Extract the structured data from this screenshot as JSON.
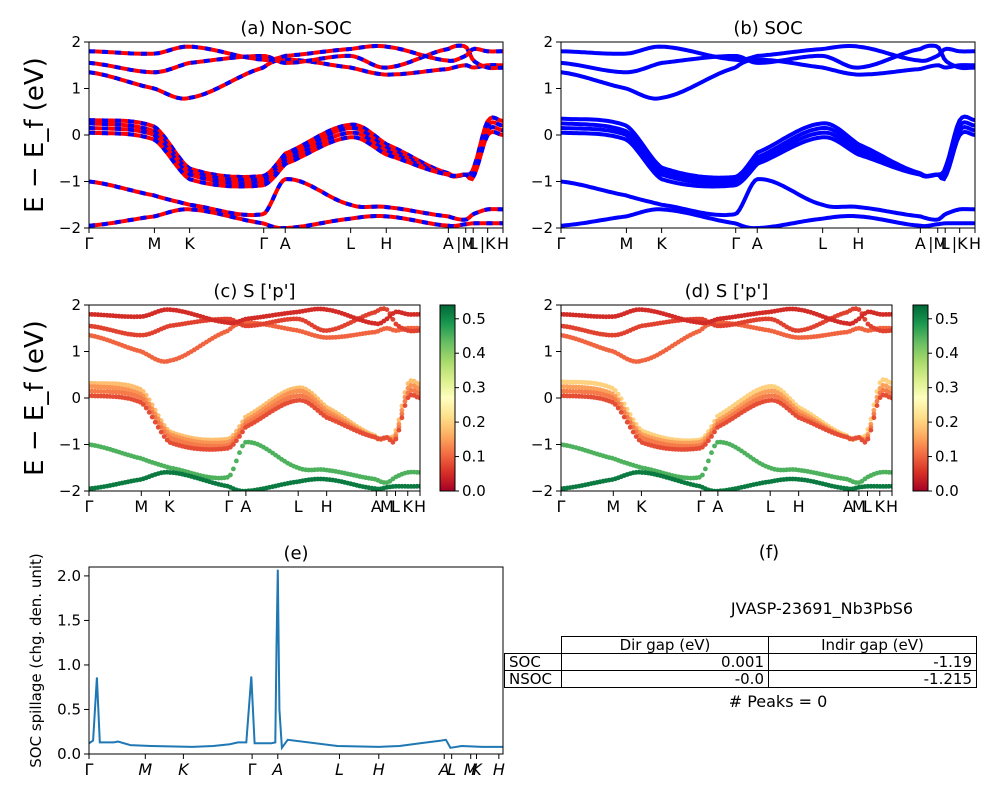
{
  "figure": {
    "ylabel_main": "E − E_f (eV)",
    "spillage_id": "JVASP-23691_Nb3PbS6",
    "peaks_text": "# Peaks = 0"
  },
  "colors": {
    "nonsoc_a": "#ff0000",
    "nonsoc_b": "#0000ff",
    "soc": "#0000ff",
    "spillage": "#1f77b4",
    "colormap": [
      "#a50026",
      "#d73027",
      "#f46d43",
      "#fdae61",
      "#fee08b",
      "#ffffbf",
      "#d9ef8b",
      "#a6d96a",
      "#66bd63",
      "#1a9850",
      "#006837"
    ]
  },
  "table": {
    "headers": [
      "",
      "Dir gap (eV)",
      "Indir gap (eV)"
    ],
    "rows": [
      {
        "label": "SOC",
        "dir": "0.001",
        "indir": "-1.19"
      },
      {
        "label": "NSOC",
        "dir": "-0.0",
        "indir": "-1.215"
      }
    ]
  },
  "chart_data": [
    {
      "panel": "a",
      "type": "line",
      "title": "(a) Non-SOC",
      "ylabel": "E − E_f (eV)",
      "ylim": [
        -2,
        2
      ],
      "yticks": [
        -2,
        -1,
        0,
        1,
        2
      ],
      "kpath": [
        {
          "label": "Γ",
          "k": 0
        },
        {
          "label": "M",
          "k": 0.158
        },
        {
          "label": "K",
          "k": 0.243
        },
        {
          "label": "Γ",
          "k": 0.422
        },
        {
          "label": "A",
          "k": 0.474
        },
        {
          "label": "L",
          "k": 0.632
        },
        {
          "label": "H",
          "k": 0.718
        },
        {
          "label": "A",
          "k": 0.868
        },
        {
          "label": "|M",
          "k": 0.91
        },
        {
          "label": "L",
          "k": 0.928
        },
        {
          "label": "|K",
          "k": 0.963
        },
        {
          "label": "H",
          "k": 1.0
        }
      ],
      "series": [
        {
          "values": [
            0.32,
            0.18,
            -0.72,
            -0.88,
            -0.4,
            0.22,
            -0.2,
            -0.82,
            -0.85,
            -0.72,
            0.3,
            0.3
          ]
        },
        {
          "values": [
            0.25,
            0.08,
            -0.78,
            -0.95,
            -0.48,
            0.15,
            -0.28,
            -0.85,
            -0.85,
            -0.8,
            0.2,
            0.2
          ]
        },
        {
          "values": [
            0.15,
            0.0,
            -0.85,
            -1.02,
            -0.55,
            0.05,
            -0.35,
            -0.85,
            -0.85,
            -0.85,
            0.1,
            0.1
          ]
        },
        {
          "values": [
            0.05,
            -0.1,
            -0.95,
            -1.08,
            -0.62,
            -0.05,
            -0.42,
            -0.85,
            -0.85,
            -0.9,
            0.0,
            0.0
          ]
        },
        {
          "values": [
            -1.0,
            -1.3,
            -1.5,
            -1.7,
            -0.95,
            -1.5,
            -1.55,
            -1.75,
            -1.82,
            -1.7,
            -1.6,
            -1.6
          ]
        },
        {
          "values": [
            -1.95,
            -1.75,
            -1.6,
            -1.9,
            -2.0,
            -1.8,
            -1.75,
            -1.95,
            -1.92,
            -1.9,
            -1.9,
            -1.9
          ]
        },
        {
          "values": [
            1.35,
            1.0,
            0.8,
            1.45,
            1.62,
            1.45,
            1.3,
            1.42,
            1.5,
            1.45,
            1.5,
            1.5
          ]
        },
        {
          "values": [
            1.55,
            1.35,
            1.55,
            1.7,
            1.55,
            1.7,
            1.45,
            1.85,
            1.9,
            1.6,
            1.45,
            1.45
          ]
        },
        {
          "values": [
            1.8,
            1.75,
            1.9,
            1.62,
            1.7,
            1.85,
            1.9,
            1.6,
            1.7,
            1.85,
            1.8,
            1.8
          ]
        }
      ]
    },
    {
      "panel": "b",
      "type": "line",
      "title": "(b) SOC",
      "ylim": [
        -2,
        2
      ],
      "yticks": [
        -2,
        -1,
        0,
        1,
        2
      ],
      "kpath": [
        {
          "label": "Γ",
          "k": 0
        },
        {
          "label": "M",
          "k": 0.158
        },
        {
          "label": "K",
          "k": 0.243
        },
        {
          "label": "Γ",
          "k": 0.422
        },
        {
          "label": "A",
          "k": 0.474
        },
        {
          "label": "L",
          "k": 0.632
        },
        {
          "label": "H",
          "k": 0.718
        },
        {
          "label": "A",
          "k": 0.868
        },
        {
          "label": "|M",
          "k": 0.91
        },
        {
          "label": "L",
          "k": 0.928
        },
        {
          "label": "|K",
          "k": 0.963
        },
        {
          "label": "H",
          "k": 1.0
        }
      ],
      "series": [
        {
          "values": [
            0.35,
            0.2,
            -0.7,
            -0.9,
            -0.38,
            0.25,
            -0.2,
            -0.82,
            -0.85,
            -0.7,
            0.32,
            0.32
          ]
        },
        {
          "values": [
            0.25,
            0.08,
            -0.78,
            -0.95,
            -0.48,
            0.15,
            -0.28,
            -0.85,
            -0.85,
            -0.8,
            0.2,
            0.2
          ]
        },
        {
          "values": [
            0.15,
            0.0,
            -0.85,
            -1.02,
            -0.55,
            0.05,
            -0.35,
            -0.85,
            -0.85,
            -0.85,
            0.1,
            0.1
          ]
        },
        {
          "values": [
            0.05,
            -0.1,
            -0.95,
            -1.08,
            -0.62,
            -0.05,
            -0.42,
            -0.85,
            -0.85,
            -0.9,
            0.0,
            0.0
          ]
        },
        {
          "values": [
            -1.0,
            -1.3,
            -1.5,
            -1.7,
            -0.95,
            -1.5,
            -1.55,
            -1.75,
            -1.82,
            -1.7,
            -1.6,
            -1.6
          ]
        },
        {
          "values": [
            -1.95,
            -1.75,
            -1.6,
            -1.9,
            -2.0,
            -1.8,
            -1.75,
            -1.95,
            -1.92,
            -1.9,
            -1.9,
            -1.9
          ]
        },
        {
          "values": [
            1.35,
            1.0,
            0.8,
            1.45,
            1.62,
            1.45,
            1.3,
            1.42,
            1.5,
            1.45,
            1.5,
            1.5
          ]
        },
        {
          "values": [
            1.55,
            1.35,
            1.55,
            1.7,
            1.55,
            1.7,
            1.45,
            1.85,
            1.9,
            1.6,
            1.45,
            1.45
          ]
        },
        {
          "values": [
            1.8,
            1.75,
            1.9,
            1.62,
            1.7,
            1.85,
            1.9,
            1.6,
            1.7,
            1.85,
            1.8,
            1.8
          ]
        }
      ]
    },
    {
      "panel": "c",
      "type": "scatter",
      "title": "(c)  S ['p']",
      "ylabel": "E − E_f (eV)",
      "ylim": [
        -2,
        2
      ],
      "yticks": [
        -2,
        -1,
        0,
        1,
        2
      ],
      "colorbar": {
        "range": [
          0,
          0.54
        ],
        "ticks": [
          0.0,
          0.1,
          0.2,
          0.3,
          0.4,
          0.5
        ]
      },
      "kpath": [
        {
          "label": "Γ",
          "k": 0
        },
        {
          "label": "M",
          "k": 0.158
        },
        {
          "label": "K",
          "k": 0.243
        },
        {
          "label": "Γ",
          "k": 0.422
        },
        {
          "label": "A",
          "k": 0.474
        },
        {
          "label": "L",
          "k": 0.632
        },
        {
          "label": "H",
          "k": 0.718
        },
        {
          "label": "A",
          "k": 0.868
        },
        {
          "label": "M",
          "k": 0.9
        },
        {
          "label": "L",
          "k": 0.926
        },
        {
          "label": "K",
          "k": 0.963
        },
        {
          "label": "H",
          "k": 1.0
        }
      ],
      "series": [
        {
          "values": [
            0.32,
            0.18,
            -0.72,
            -0.88,
            -0.4,
            0.22,
            -0.2,
            -0.82,
            -0.85,
            -0.72,
            0.3,
            0.3
          ],
          "weight": 0.18
        },
        {
          "values": [
            0.25,
            0.08,
            -0.78,
            -0.95,
            -0.48,
            0.15,
            -0.28,
            -0.85,
            -0.85,
            -0.8,
            0.2,
            0.2
          ],
          "weight": 0.14
        },
        {
          "values": [
            0.15,
            0.0,
            -0.85,
            -1.02,
            -0.55,
            0.05,
            -0.35,
            -0.85,
            -0.85,
            -0.85,
            0.1,
            0.1
          ],
          "weight": 0.12
        },
        {
          "values": [
            0.05,
            -0.1,
            -0.95,
            -1.08,
            -0.62,
            -0.05,
            -0.42,
            -0.85,
            -0.85,
            -0.9,
            0.0,
            0.0
          ],
          "weight": 0.08
        },
        {
          "values": [
            -1.0,
            -1.3,
            -1.5,
            -1.7,
            -0.95,
            -1.5,
            -1.55,
            -1.75,
            -1.82,
            -1.7,
            -1.6,
            -1.6
          ],
          "weight": 0.45
        },
        {
          "values": [
            -1.95,
            -1.75,
            -1.6,
            -1.9,
            -2.0,
            -1.8,
            -1.75,
            -1.95,
            -1.92,
            -1.9,
            -1.9,
            -1.9
          ],
          "weight": 0.52
        },
        {
          "values": [
            1.35,
            1.0,
            0.8,
            1.45,
            1.62,
            1.45,
            1.3,
            1.42,
            1.5,
            1.45,
            1.5,
            1.5
          ],
          "weight": 0.1
        },
        {
          "values": [
            1.55,
            1.35,
            1.55,
            1.7,
            1.55,
            1.7,
            1.45,
            1.85,
            1.9,
            1.6,
            1.45,
            1.45
          ],
          "weight": 0.07
        },
        {
          "values": [
            1.8,
            1.75,
            1.9,
            1.62,
            1.7,
            1.85,
            1.9,
            1.6,
            1.7,
            1.85,
            1.8,
            1.8
          ],
          "weight": 0.05
        }
      ]
    },
    {
      "panel": "d",
      "type": "scatter",
      "title": "(d) S ['p']",
      "ylim": [
        -2,
        2
      ],
      "yticks": [
        -2,
        -1,
        0,
        1,
        2
      ],
      "colorbar": {
        "range": [
          0,
          0.54
        ],
        "ticks": [
          0.0,
          0.1,
          0.2,
          0.3,
          0.4,
          0.5
        ]
      },
      "kpath": [
        {
          "label": "Γ",
          "k": 0
        },
        {
          "label": "M",
          "k": 0.158
        },
        {
          "label": "K",
          "k": 0.243
        },
        {
          "label": "Γ",
          "k": 0.422
        },
        {
          "label": "A",
          "k": 0.474
        },
        {
          "label": "L",
          "k": 0.632
        },
        {
          "label": "H",
          "k": 0.718
        },
        {
          "label": "A",
          "k": 0.868
        },
        {
          "label": "M",
          "k": 0.9
        },
        {
          "label": "L",
          "k": 0.926
        },
        {
          "label": "K",
          "k": 0.963
        },
        {
          "label": "H",
          "k": 1.0
        }
      ],
      "series": [
        {
          "values": [
            0.35,
            0.2,
            -0.7,
            -0.9,
            -0.38,
            0.25,
            -0.2,
            -0.82,
            -0.85,
            -0.7,
            0.32,
            0.32
          ],
          "weight": 0.2
        },
        {
          "values": [
            0.25,
            0.08,
            -0.78,
            -0.95,
            -0.48,
            0.15,
            -0.28,
            -0.85,
            -0.85,
            -0.8,
            0.2,
            0.2
          ],
          "weight": 0.15
        },
        {
          "values": [
            0.15,
            0.0,
            -0.85,
            -1.02,
            -0.55,
            0.05,
            -0.35,
            -0.85,
            -0.85,
            -0.85,
            0.1,
            0.1
          ],
          "weight": 0.12
        },
        {
          "values": [
            0.05,
            -0.1,
            -0.95,
            -1.08,
            -0.62,
            -0.05,
            -0.42,
            -0.85,
            -0.85,
            -0.9,
            0.0,
            0.0
          ],
          "weight": 0.08
        },
        {
          "values": [
            -1.0,
            -1.3,
            -1.5,
            -1.7,
            -0.95,
            -1.5,
            -1.55,
            -1.75,
            -1.82,
            -1.7,
            -1.6,
            -1.6
          ],
          "weight": 0.45
        },
        {
          "values": [
            -1.95,
            -1.75,
            -1.6,
            -1.9,
            -2.0,
            -1.8,
            -1.75,
            -1.95,
            -1.92,
            -1.9,
            -1.9,
            -1.9
          ],
          "weight": 0.52
        },
        {
          "values": [
            1.35,
            1.0,
            0.8,
            1.45,
            1.62,
            1.45,
            1.3,
            1.42,
            1.5,
            1.45,
            1.5,
            1.5
          ],
          "weight": 0.1
        },
        {
          "values": [
            1.55,
            1.35,
            1.55,
            1.7,
            1.55,
            1.7,
            1.45,
            1.85,
            1.9,
            1.6,
            1.45,
            1.45
          ],
          "weight": 0.07
        },
        {
          "values": [
            1.8,
            1.75,
            1.9,
            1.62,
            1.7,
            1.85,
            1.9,
            1.6,
            1.7,
            1.85,
            1.8,
            1.8
          ],
          "weight": 0.05
        }
      ]
    },
    {
      "panel": "e",
      "type": "line",
      "title": "(e)",
      "ylabel": "SOC spillage (chg. den. unit)",
      "ylim": [
        0,
        2.1
      ],
      "yticks": [
        0.0,
        0.5,
        1.0,
        1.5,
        2.0
      ],
      "kpath": [
        {
          "label": "Γ",
          "k": 0
        },
        {
          "label": "M",
          "k": 0.136
        },
        {
          "label": "K",
          "k": 0.228
        },
        {
          "label": "Γ",
          "k": 0.394
        },
        {
          "label": "A",
          "k": 0.456
        },
        {
          "label": "L",
          "k": 0.605
        },
        {
          "label": "H",
          "k": 0.7
        },
        {
          "label": "A",
          "k": 0.858
        },
        {
          "label": "L",
          "k": 0.876
        },
        {
          "label": "M",
          "k": 0.922
        },
        {
          "label": "K",
          "k": 0.936
        },
        {
          "label": "H",
          "k": 0.99
        }
      ],
      "x": [
        0,
        0.01,
        0.019,
        0.026,
        0.05,
        0.06,
        0.07,
        0.1,
        0.15,
        0.25,
        0.3,
        0.34,
        0.36,
        0.38,
        0.386,
        0.392,
        0.4,
        0.44,
        0.45,
        0.453,
        0.456,
        0.46,
        0.466,
        0.48,
        0.6,
        0.7,
        0.75,
        0.8,
        0.85,
        0.862,
        0.873,
        0.9,
        0.95,
        1.0
      ],
      "y": [
        0.12,
        0.15,
        0.86,
        0.13,
        0.13,
        0.13,
        0.14,
        0.1,
        0.09,
        0.08,
        0.09,
        0.11,
        0.13,
        0.13,
        0.5,
        0.87,
        0.12,
        0.12,
        0.13,
        1.2,
        2.07,
        0.5,
        0.07,
        0.16,
        0.09,
        0.08,
        0.09,
        0.12,
        0.15,
        0.16,
        0.07,
        0.09,
        0.08,
        0.08
      ]
    }
  ]
}
